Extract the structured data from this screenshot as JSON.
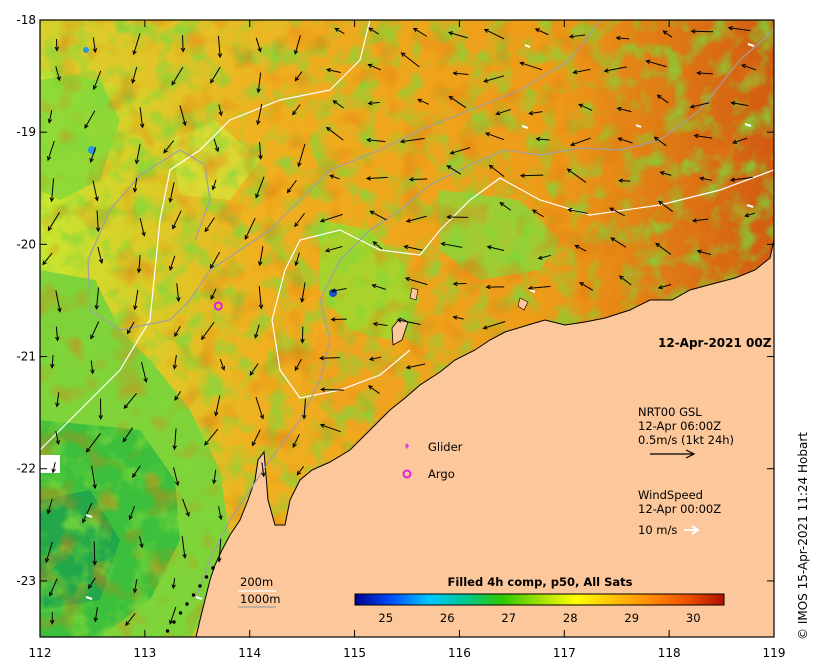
{
  "map": {
    "date_label": "12-Apr-2021 00Z",
    "x_ticks": [
      "112",
      "113",
      "114",
      "115",
      "116",
      "117",
      "118",
      "119"
    ],
    "y_ticks": [
      "-18",
      "-19",
      "-20",
      "-21",
      "-22",
      "-23"
    ],
    "extent": {
      "lon": [
        112,
        119
      ],
      "lat": [
        -23.5,
        -18
      ]
    },
    "colors": {
      "land": "#fcc79a",
      "frame": "#000000"
    }
  },
  "currents_legend": {
    "title": "NRT00 GSL",
    "time": "12-Apr 06:00Z",
    "scale": "0.5m/s (1kt 24h)"
  },
  "wind_legend": {
    "title": "WindSpeed",
    "time": "12-Apr 00:00Z",
    "scale": "10 m/s"
  },
  "markers": {
    "glider": "Glider",
    "argo": "Argo",
    "glider_color": "#e040e0",
    "argo_color": "#e020e0",
    "argo_position": {
      "lon": 113.7,
      "lat": -20.55
    }
  },
  "isobaths": {
    "a": "200m",
    "b": "1000m"
  },
  "colorbar": {
    "title": "Filled 4h comp, p50, All Sats",
    "labels": [
      "25",
      "26",
      "27",
      "28",
      "29",
      "30"
    ],
    "range": [
      24.5,
      30.5
    ],
    "stops": [
      "#00008b",
      "#0050ff",
      "#00c8ff",
      "#00c890",
      "#30c800",
      "#a0e000",
      "#ffff00",
      "#ffc000",
      "#ff8c00",
      "#f05000",
      "#b01000"
    ]
  },
  "credit": "© IMOS 15-Apr-2021 11:24 Hobart"
}
